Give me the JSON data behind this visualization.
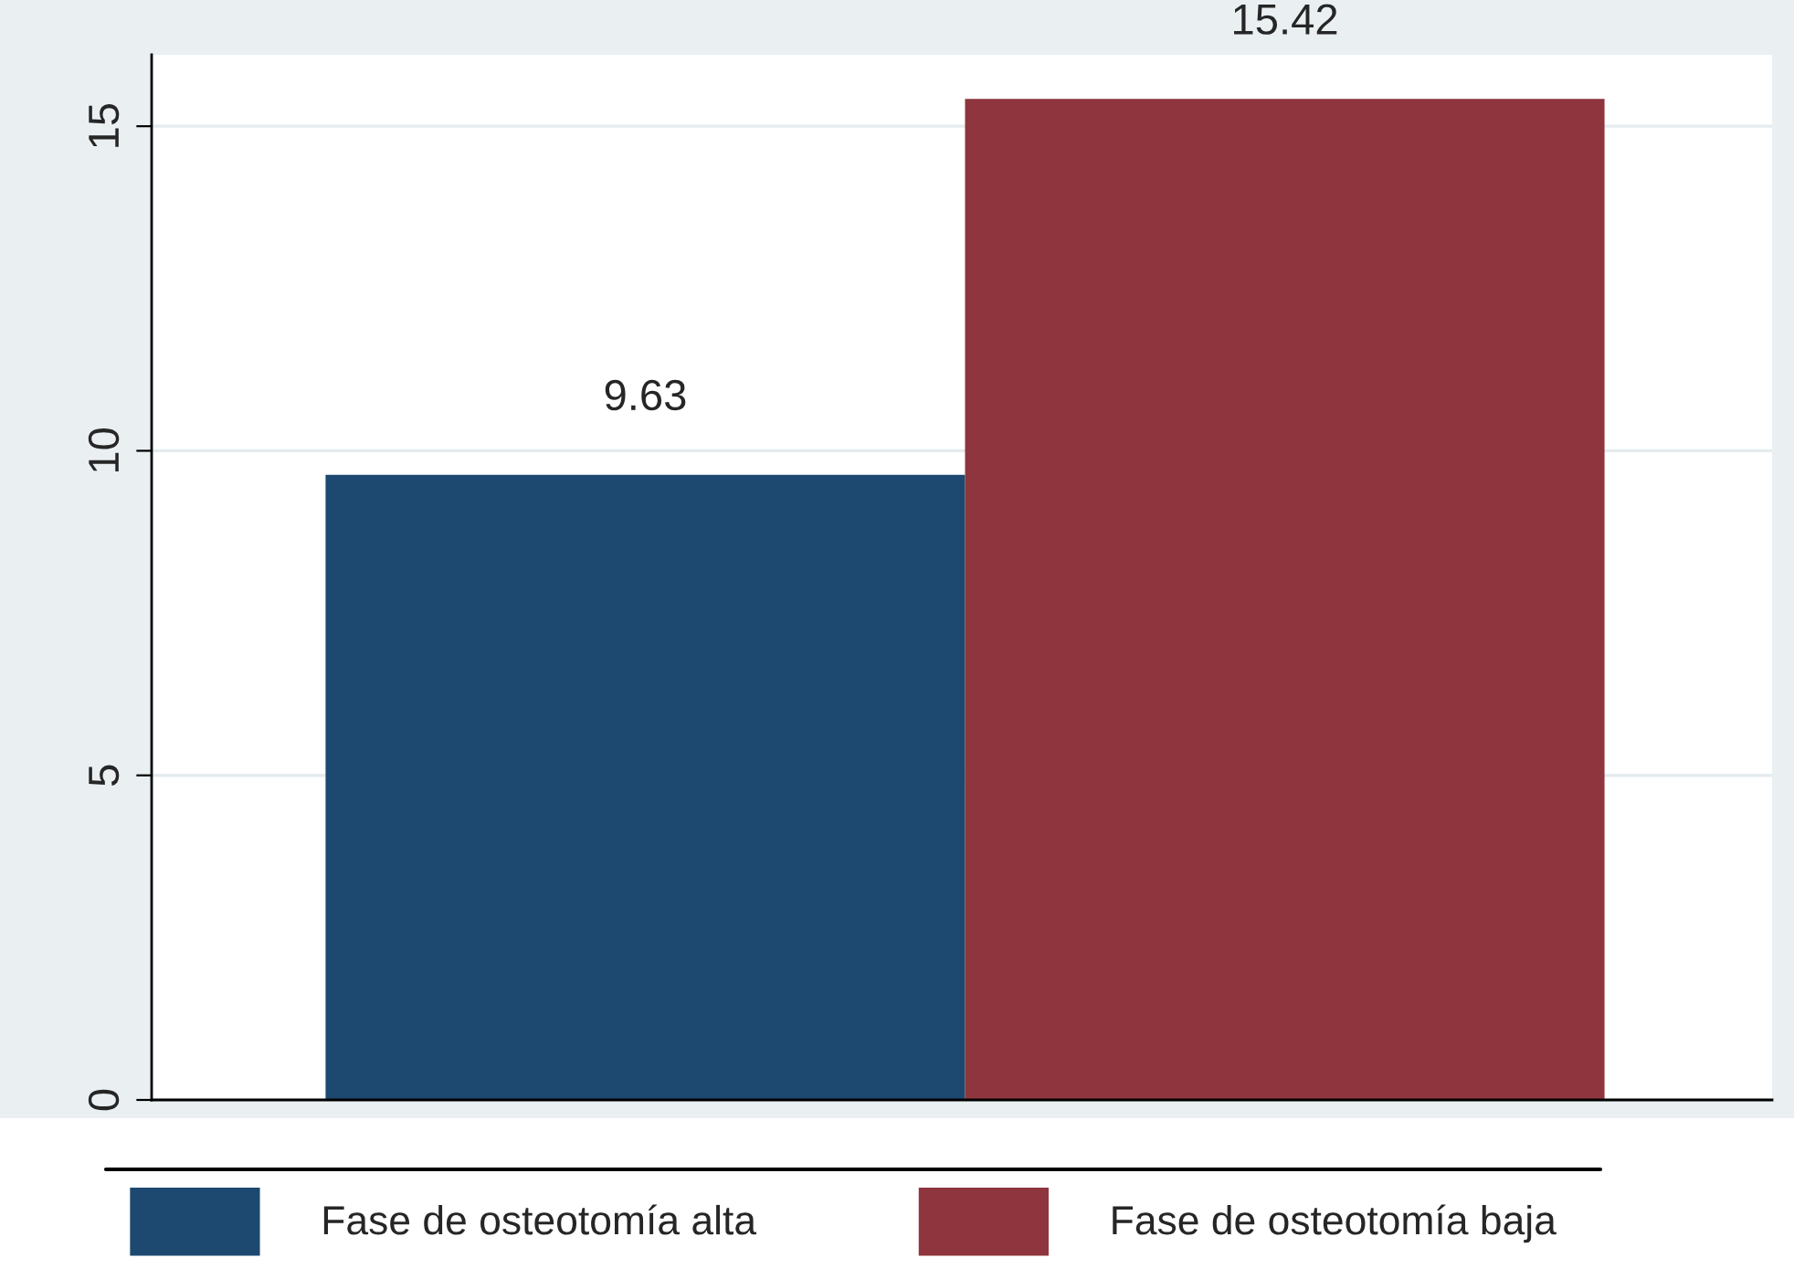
{
  "chart_data": {
    "type": "bar",
    "categories": [
      null
    ],
    "series": [
      {
        "name": "Fase de osteotomía alta",
        "color": "#1d4870",
        "values": [
          9.63
        ]
      },
      {
        "name": "Fase de osteotomía baja",
        "color": "#8e353d",
        "values": [
          15.42
        ]
      }
    ],
    "ylim": [
      0,
      16.1
    ],
    "yticks": [
      0,
      5,
      10,
      15
    ],
    "grid": "y",
    "data_labels": true,
    "legend": "bottom"
  }
}
